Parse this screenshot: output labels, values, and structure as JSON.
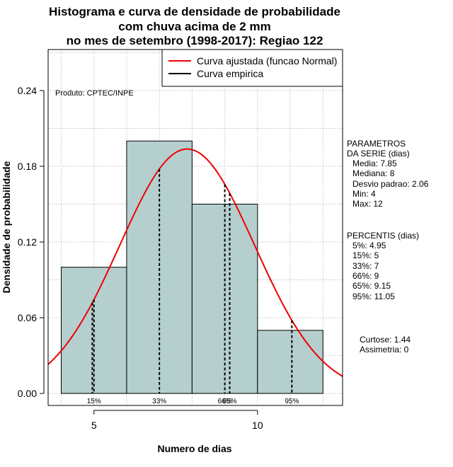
{
  "chart_data": {
    "type": "bar",
    "title_lines": [
      "Histograma e curva de densidade de probabilidade",
      "com chuva acima de 2 mm",
      "no mes de setembro (1998-2017): Regiao 122"
    ],
    "xlabel": "Numero de dias",
    "ylabel": "Densidade de probabilidade",
    "xlim": [
      3.6,
      12.6
    ],
    "ylim": [
      -0.0095,
      0.2725
    ],
    "xticks": [
      5,
      10
    ],
    "yticks": [
      0.0,
      0.06,
      0.12,
      0.18,
      0.24
    ],
    "ytick_labels": [
      "0.00",
      "0.06",
      "0.12",
      "0.18",
      "0.24"
    ],
    "grid": true,
    "bins": [
      {
        "x0": 4,
        "x1": 6,
        "density": 0.1
      },
      {
        "x0": 6,
        "x1": 8,
        "density": 0.2
      },
      {
        "x0": 8,
        "x1": 10,
        "density": 0.15
      },
      {
        "x0": 10,
        "x1": 12,
        "density": 0.05
      }
    ],
    "bar_color": "#b5cfcf",
    "normal_curve": {
      "mean": 7.85,
      "sd": 2.06,
      "color": "#ee0000"
    },
    "percentile_lines": [
      {
        "x": 4.95,
        "label": "5%"
      },
      {
        "x": 5,
        "label": "15%"
      },
      {
        "x": 7,
        "label": "33%"
      },
      {
        "x": 9,
        "label": "66%"
      },
      {
        "x": 9.15,
        "label": "65%"
      },
      {
        "x": 11.05,
        "label": "95%"
      }
    ],
    "legend": {
      "position": "top-right",
      "entries": [
        {
          "label": "Curva ajustada (funcao Normal)",
          "color": "#ee0000"
        },
        {
          "label": "Curva empirica",
          "color": "#000000"
        }
      ]
    },
    "source_note": "Produto: CPTEC/INPE"
  },
  "stats": {
    "params_header": [
      "PARAMETROS",
      "DA SERIE (dias)"
    ],
    "params": [
      "Media: 7.85",
      "Mediana: 8",
      "Desvio padrao: 2.06",
      "Min: 4",
      "Max: 12"
    ],
    "perc_header": "PERCENTIS (dias)",
    "percentiles": [
      "5%: 4.95",
      "15%: 5",
      "33%: 7",
      "66%: 9",
      "65%: 9.15",
      "95%: 11.05"
    ],
    "shape": [
      "Curtose: 1.44",
      "Assimetria: 0"
    ]
  }
}
